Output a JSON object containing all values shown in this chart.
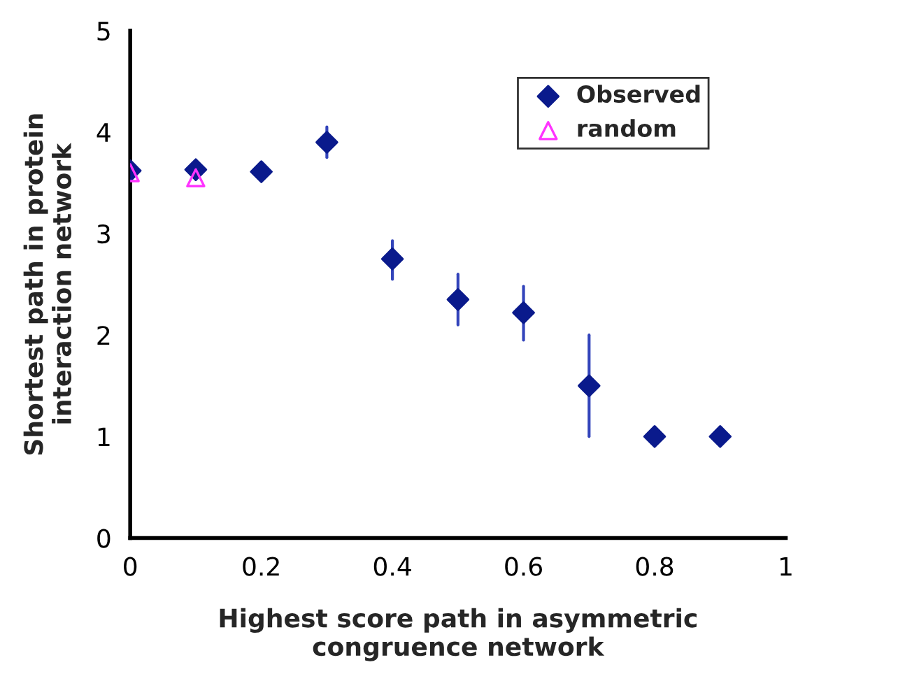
{
  "chart_data": {
    "type": "scatter",
    "xlabel": "Highest score path in asymmetric\ncongruence network",
    "ylabel": "Shortest path in protein\ninteraction network",
    "xlim": [
      0,
      1
    ],
    "xticks": [
      0,
      0.2,
      0.4,
      0.6,
      0.8,
      1
    ],
    "ylim": [
      0,
      5
    ],
    "yticks": [
      0,
      1,
      2,
      3,
      4,
      5
    ],
    "grid": false,
    "legend": "top right",
    "series": [
      {
        "name": "Observed",
        "color": "#0a1a8c",
        "marker": "diamond",
        "x": [
          0,
          0.1,
          0.2,
          0.3,
          0.4,
          0.5,
          0.6,
          0.7,
          0.8,
          0.9
        ],
        "values": [
          3.62,
          3.63,
          3.61,
          3.9,
          2.75,
          2.35,
          2.22,
          1.5,
          1,
          1
        ],
        "errors": [
          null,
          null,
          null,
          [
            3.75,
            4.05
          ],
          [
            2.55,
            2.93
          ],
          [
            2.1,
            2.6
          ],
          [
            1.95,
            2.48
          ],
          [
            1.0,
            2.0
          ],
          null,
          null
        ]
      },
      {
        "name": "random",
        "color": "#ff33ff",
        "marker": "triangle",
        "x": [
          0,
          0.1
        ],
        "values": [
          3.6,
          3.55
        ]
      }
    ]
  }
}
